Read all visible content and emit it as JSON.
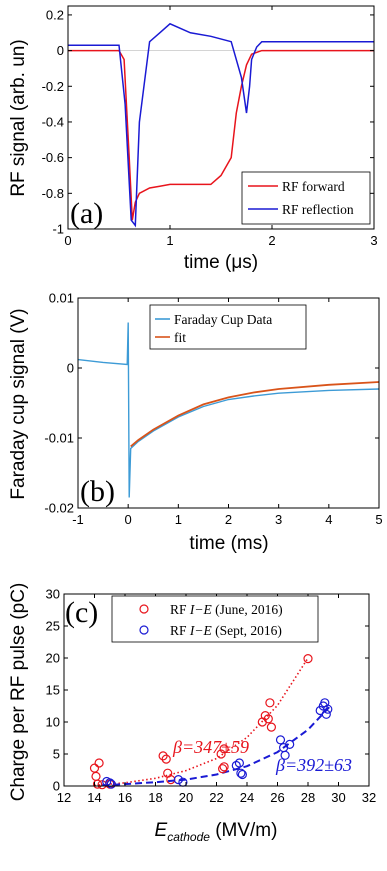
{
  "chart_data": [
    {
      "type": "line",
      "panel_label": "(a)",
      "xlabel": "time (μs)",
      "ylabel": "RF signal (arb. un)",
      "xlim": [
        0,
        3
      ],
      "ylim": [
        -1,
        0.25
      ],
      "xticks": [
        "0",
        "1",
        "2",
        "3"
      ],
      "yticks": [
        "-1",
        "-0.8",
        "-0.6",
        "-0.4",
        "-0.2",
        "0",
        "0.2"
      ],
      "legend_placement": "bottom-right",
      "series": [
        {
          "name": "RF forward",
          "color": "#e8141c",
          "x": [
            0,
            0.5,
            0.55,
            0.6,
            0.63,
            0.66,
            0.7,
            0.8,
            0.9,
            1.0,
            1.2,
            1.4,
            1.5,
            1.6,
            1.65,
            1.7,
            1.75,
            1.8,
            1.9,
            2.0,
            3.0
          ],
          "y": [
            0.0,
            0.0,
            -0.05,
            -0.6,
            -0.95,
            -0.85,
            -0.8,
            -0.77,
            -0.76,
            -0.75,
            -0.75,
            -0.75,
            -0.7,
            -0.6,
            -0.35,
            -0.2,
            -0.08,
            -0.02,
            0.0,
            0.0,
            0.0
          ]
        },
        {
          "name": "RF reflection",
          "color": "#1a1ad4",
          "x": [
            0,
            0.5,
            0.56,
            0.62,
            0.66,
            0.7,
            0.8,
            0.9,
            1.0,
            1.2,
            1.4,
            1.6,
            1.7,
            1.75,
            1.78,
            1.8,
            1.85,
            1.9,
            2.0,
            3.0
          ],
          "y": [
            0.03,
            0.03,
            -0.3,
            -0.95,
            -0.98,
            -0.4,
            0.05,
            0.1,
            0.15,
            0.1,
            0.08,
            0.05,
            -0.15,
            -0.35,
            -0.2,
            -0.05,
            0.02,
            0.05,
            0.05,
            0.05
          ]
        }
      ]
    },
    {
      "type": "line",
      "panel_label": "(b)",
      "xlabel": "time (ms)",
      "ylabel": "Faraday cup signal (V)",
      "xlim": [
        -1,
        5
      ],
      "ylim": [
        -0.02,
        0.01
      ],
      "xticks": [
        "-1",
        "0",
        "1",
        "2",
        "3",
        "4",
        "5"
      ],
      "yticks": [
        "-0.02",
        "-0.01",
        "0",
        "0.01"
      ],
      "legend_placement": "top-right",
      "series": [
        {
          "name": "Faraday Cup Data",
          "color": "#3d9bd6",
          "x": [
            -1,
            -0.5,
            -0.02,
            0,
            0.02,
            0.05,
            0.2,
            0.5,
            1,
            1.5,
            2,
            2.5,
            3,
            4,
            5
          ],
          "y": [
            0.0012,
            0.0008,
            0.0005,
            0.0065,
            -0.0185,
            -0.0115,
            -0.0105,
            -0.009,
            -0.007,
            -0.0055,
            -0.0045,
            -0.004,
            -0.0036,
            -0.0032,
            -0.003
          ]
        },
        {
          "name": "fit",
          "color": "#d9541a",
          "x": [
            0.05,
            0.2,
            0.5,
            1,
            1.5,
            2,
            2.5,
            3,
            4,
            5
          ],
          "y": [
            -0.0112,
            -0.0103,
            -0.0088,
            -0.0068,
            -0.0052,
            -0.0042,
            -0.0035,
            -0.003,
            -0.0024,
            -0.002
          ]
        }
      ]
    },
    {
      "type": "scatter",
      "panel_label": "(c)",
      "xlabel": "E",
      "xlabel_sub": "cathode",
      "xlabel_unit": " (MV/m)",
      "ylabel": "Charge per RF pulse (pC)",
      "xlim": [
        12,
        32
      ],
      "ylim": [
        0,
        30
      ],
      "xticks": [
        "12",
        "14",
        "16",
        "18",
        "20",
        "22",
        "24",
        "26",
        "28",
        "30",
        "32"
      ],
      "yticks": [
        "0",
        "5",
        "10",
        "15",
        "20",
        "25",
        "30"
      ],
      "legend_placement": "top",
      "series": [
        {
          "name_prefix": "RF ",
          "name_mid": "I−E",
          "name_suffix": " (June, 2016)",
          "color": "#e8141c",
          "points": [
            [
              14.0,
              2.8
            ],
            [
              14.1,
              1.5
            ],
            [
              14.3,
              3.6
            ],
            [
              14.2,
              0.3
            ],
            [
              14.5,
              0.2
            ],
            [
              15.0,
              0.3
            ],
            [
              18.5,
              4.7
            ],
            [
              18.7,
              4.2
            ],
            [
              18.8,
              2.0
            ],
            [
              19.0,
              1.0
            ],
            [
              22.3,
              5.0
            ],
            [
              22.5,
              5.8
            ],
            [
              22.5,
              3.0
            ],
            [
              22.4,
              2.7
            ],
            [
              25.0,
              10.0
            ],
            [
              25.2,
              11.0
            ],
            [
              25.4,
              10.5
            ],
            [
              25.5,
              13.0
            ],
            [
              25.6,
              9.2
            ],
            [
              28.0,
              19.9
            ]
          ]
        },
        {
          "name_prefix": "RF ",
          "name_mid": "I−E",
          "name_suffix": " (Sept, 2016)",
          "color": "#1a1ad4",
          "points": [
            [
              14.8,
              0.7
            ],
            [
              15.0,
              0.5
            ],
            [
              15.1,
              0.3
            ],
            [
              19.5,
              1.0
            ],
            [
              19.8,
              0.6
            ],
            [
              23.3,
              3.2
            ],
            [
              23.5,
              3.6
            ],
            [
              23.6,
              2.0
            ],
            [
              23.7,
              1.8
            ],
            [
              26.2,
              7.2
            ],
            [
              26.4,
              6.0
            ],
            [
              26.5,
              4.8
            ],
            [
              26.8,
              6.5
            ],
            [
              28.8,
              11.8
            ],
            [
              29.0,
              12.5
            ],
            [
              29.1,
              13.0
            ],
            [
              29.2,
              11.2
            ],
            [
              29.3,
              12.0
            ]
          ]
        }
      ],
      "fits": [
        {
          "color": "#e8141c",
          "style": "dotted",
          "x": [
            14,
            16,
            18,
            20,
            22,
            24,
            26,
            28
          ],
          "y": [
            0.1,
            0.5,
            1.2,
            2.4,
            4.3,
            7.6,
            12.6,
            20.0
          ]
        },
        {
          "color": "#1a1ad4",
          "style": "dashed",
          "x": [
            14.5,
            16,
            18,
            20,
            22,
            24,
            26,
            28,
            29.5
          ],
          "y": [
            0.1,
            0.3,
            0.6,
            1.0,
            1.8,
            3.1,
            5.3,
            8.8,
            12.6
          ]
        }
      ],
      "annotations": [
        {
          "text": "β=347±59",
          "color": "#e8141c",
          "x": 17.3,
          "y": 11.5
        },
        {
          "text": "β=392±63",
          "color": "#1a1ad4",
          "x": 25.2,
          "y": 2.7
        }
      ]
    }
  ]
}
